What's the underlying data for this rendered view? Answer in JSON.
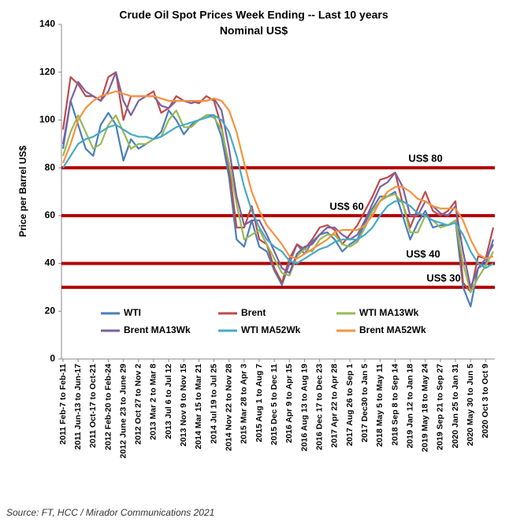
{
  "chart_data": {
    "type": "line",
    "title": "Crude Oil Spot Prices Week Ending -- Last 10 years",
    "subtitle": "Nominal US$",
    "y_label": "Price per Barrel US$",
    "source": "Source: FT, HCC / Mirador Communications 2021",
    "categories": [
      "2011 Feb-7 to Feb-11",
      null,
      "2011 Jun-13 to Jun-17",
      null,
      "2011 Oct-17 to Oct-21",
      null,
      "2012 Feb-20 to Feb-24",
      null,
      "2012 June 23 to June 29",
      null,
      "2012 Oct 27 to Nov 2",
      null,
      "2013 Mar 2 to Mar 8",
      null,
      "2013 Jul 6 to Jul 12",
      null,
      "2013 Nov 9 to Nov 15",
      null,
      "2014 Mar 15 to Mar 21",
      null,
      "2014 Jul 19 to Jul 25",
      null,
      "2014 Nov 22 to Nov 28",
      null,
      "2015 Mar 28 to Apr 3",
      null,
      "2015 Aug 1 to Aug 7",
      null,
      "2015 Dec 5 to Dec 11",
      null,
      "2016 Apr 9 to Apr 15",
      null,
      "2016 Aug 13 to Aug 19",
      null,
      "2016 Dec 17 to Dec 23",
      null,
      "2017 Apr 22 to Apr 28",
      null,
      "2017 Aug 26 to Sep 1",
      null,
      "2017 Dec30 to Jan 5",
      null,
      "2018 May 5 to May 11",
      null,
      "2018 Sep 8 to Sep 14",
      null,
      "2019 Jan 12 to Jan 18",
      null,
      "2019 May 18 to May 24",
      null,
      "2019 Sep 21 to Sep 27",
      null,
      "2020 Jan 25 to Jan 31",
      null,
      "2020 May 30 to Jun 5",
      null,
      "2020 Oct 3 to Oct 9",
      null
    ],
    "series": [
      {
        "name": "WTI",
        "color": "#4a7ebb",
        "values": [
          88,
          108,
          98,
          88,
          85,
          98,
          103,
          98,
          83,
          92,
          88,
          90,
          92,
          95,
          104,
          100,
          94,
          98,
          100,
          102,
          102,
          93,
          76,
          50,
          47,
          58,
          47,
          45,
          37,
          31,
          40,
          48,
          44,
          49,
          52,
          53,
          50,
          45,
          48,
          50,
          57,
          63,
          68,
          68,
          70,
          60,
          50,
          57,
          62,
          55,
          56,
          56,
          58,
          30,
          22,
          38,
          40,
          50
        ]
      },
      {
        "name": "Brent",
        "color": "#be4b48",
        "values": [
          96,
          118,
          115,
          110,
          110,
          108,
          118,
          120,
          100,
          110,
          110,
          110,
          112,
          103,
          105,
          110,
          108,
          108,
          107,
          110,
          108,
          97,
          80,
          55,
          55,
          64,
          50,
          48,
          38,
          32,
          42,
          48,
          46,
          50,
          55,
          56,
          54,
          48,
          52,
          56,
          62,
          68,
          75,
          76,
          78,
          65,
          55,
          63,
          70,
          62,
          60,
          62,
          66,
          32,
          28,
          43,
          42,
          55
        ]
      },
      {
        "name": "WTI MA13Wk",
        "color": "#98b954",
        "values": [
          85,
          95,
          102,
          95,
          88,
          90,
          98,
          102,
          95,
          88,
          90,
          90,
          92,
          93,
          100,
          104,
          97,
          97,
          100,
          102,
          101,
          96,
          82,
          65,
          50,
          52,
          54,
          48,
          42,
          36,
          35,
          43,
          46,
          45,
          50,
          52,
          52,
          48,
          47,
          49,
          55,
          62,
          66,
          68,
          69,
          65,
          53,
          53,
          60,
          58,
          55,
          56,
          58,
          40,
          28,
          34,
          39,
          45
        ]
      },
      {
        "name": "Brent MA13Wk",
        "color": "#7d60a0",
        "values": [
          90,
          108,
          116,
          112,
          110,
          108,
          112,
          120,
          108,
          102,
          108,
          110,
          110,
          106,
          105,
          108,
          108,
          107,
          108,
          108,
          109,
          104,
          88,
          68,
          56,
          58,
          58,
          52,
          45,
          38,
          36,
          44,
          47,
          48,
          52,
          55,
          55,
          52,
          50,
          52,
          58,
          65,
          72,
          74,
          78,
          72,
          60,
          60,
          66,
          64,
          61,
          60,
          64,
          45,
          30,
          38,
          42,
          48
        ]
      },
      {
        "name": "WTI MA52Wk",
        "color": "#46aac5",
        "values": [
          80,
          85,
          90,
          92,
          93,
          95,
          97,
          98,
          96,
          94,
          93,
          93,
          92,
          93,
          95,
          97,
          98,
          99,
          100,
          101,
          102,
          100,
          95,
          85,
          72,
          62,
          55,
          50,
          47,
          45,
          41,
          40,
          42,
          44,
          46,
          47,
          49,
          50,
          50,
          50,
          52,
          55,
          60,
          64,
          66,
          66,
          64,
          61,
          60,
          58,
          57,
          56,
          57,
          52,
          45,
          40,
          38,
          40
        ]
      },
      {
        "name": "Brent MA52Wk",
        "color": "#f69240",
        "values": [
          82,
          90,
          100,
          105,
          108,
          110,
          111,
          112,
          111,
          110,
          110,
          110,
          110,
          109,
          108,
          108,
          108,
          108,
          108,
          108,
          109,
          108,
          104,
          95,
          82,
          70,
          62,
          56,
          52,
          48,
          43,
          42,
          44,
          46,
          48,
          50,
          53,
          54,
          54,
          54,
          56,
          60,
          66,
          70,
          72,
          72,
          70,
          67,
          66,
          64,
          63,
          63,
          63,
          58,
          50,
          44,
          42,
          43
        ]
      }
    ],
    "reference_lines": [
      {
        "value": 80,
        "label": "US$ 80"
      },
      {
        "value": 60,
        "label": "US$ 60"
      },
      {
        "value": 40,
        "label": "US$ 40"
      },
      {
        "value": 30,
        "label": "US$ 30"
      }
    ],
    "reference_color": "#b00000",
    "ylim": [
      0,
      140
    ],
    "yticks": [
      0,
      20,
      40,
      60,
      80,
      100,
      120,
      140
    ],
    "grid": false
  }
}
